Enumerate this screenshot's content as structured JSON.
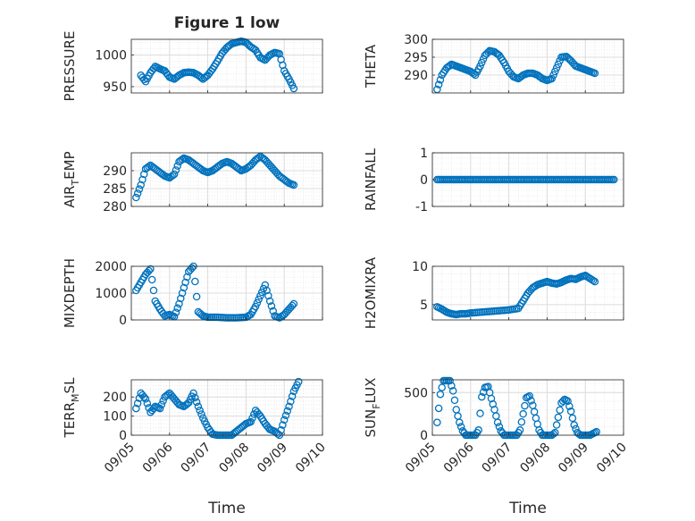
{
  "figure": {
    "title": "Figure 1 low"
  },
  "chart_data": [
    {
      "type": "scatter",
      "title": "Figure 1 low",
      "ylabel": "PRESSURE",
      "xlabel": "",
      "xlim": [
        "09/05",
        "09/10"
      ],
      "ylim": [
        940,
        1025
      ],
      "yticks": [
        "950",
        "1000"
      ],
      "xticks": [
        "09/05",
        "09/06",
        "09/07",
        "09/08",
        "09/09",
        "09/10"
      ],
      "grid": true,
      "x": [
        "09/05 06:00",
        "09/05 09:00",
        "09/05 12:00",
        "09/05 15:00",
        "09/05 18:00",
        "09/05 21:00",
        "09/06 00:00",
        "09/06 03:00",
        "09/06 06:00",
        "09/06 09:00",
        "09/06 12:00",
        "09/06 15:00",
        "09/06 18:00",
        "09/06 21:00",
        "09/07 00:00",
        "09/07 03:00",
        "09/07 06:00",
        "09/07 09:00",
        "09/07 12:00",
        "09/07 15:00",
        "09/07 18:00",
        "09/07 21:00",
        "09/08 00:00",
        "09/08 03:00",
        "09/08 06:00",
        "09/08 09:00",
        "09/08 12:00",
        "09/08 15:00",
        "09/08 18:00",
        "09/08 21:00",
        "09/09 00:00",
        "09/09 03:00",
        "09/09 06:00"
      ],
      "y": [
        968,
        958,
        972,
        982,
        978,
        975,
        965,
        962,
        968,
        972,
        973,
        972,
        968,
        962,
        968,
        978,
        990,
        1003,
        1012,
        1018,
        1020,
        1022,
        1020,
        1013,
        1008,
        996,
        992,
        1000,
        1004,
        1002,
        975,
        962,
        947
      ]
    },
    {
      "type": "scatter",
      "ylabel": "THETA",
      "xlabel": "",
      "xlim": [
        "09/05",
        "09/10"
      ],
      "ylim": [
        285,
        300
      ],
      "yticks": [
        "290",
        "295",
        "300"
      ],
      "xticks": [
        "09/05",
        "09/06",
        "09/07",
        "09/08",
        "09/09",
        "09/10"
      ],
      "grid": true,
      "x": [
        "09/05 03:00",
        "09/05 06:00",
        "09/05 09:00",
        "09/05 12:00",
        "09/05 15:00",
        "09/05 18:00",
        "09/05 21:00",
        "09/06 00:00",
        "09/06 03:00",
        "09/06 06:00",
        "09/06 09:00",
        "09/06 12:00",
        "09/06 15:00",
        "09/06 18:00",
        "09/06 21:00",
        "09/07 00:00",
        "09/07 03:00",
        "09/07 06:00",
        "09/07 09:00",
        "09/07 12:00",
        "09/07 15:00",
        "09/07 18:00",
        "09/07 21:00",
        "09/08 00:00",
        "09/08 03:00",
        "09/08 06:00",
        "09/08 09:00",
        "09/08 12:00",
        "09/08 15:00",
        "09/08 18:00",
        "09/08 21:00",
        "09/09 00:00",
        "09/09 03:00",
        "09/09 06:00"
      ],
      "y": [
        286,
        290,
        292,
        293,
        292.5,
        292,
        291.5,
        291,
        290,
        292.5,
        295.5,
        296.8,
        296.5,
        295.5,
        293.5,
        291,
        289.5,
        289,
        290,
        290.5,
        290.5,
        290,
        289,
        288.5,
        289,
        292,
        295,
        295.2,
        294,
        292.5,
        292,
        291.5,
        291,
        290.5
      ]
    },
    {
      "type": "scatter",
      "ylabel": "AIR_TEMP",
      "xlabel": "",
      "xlim": [
        "09/05",
        "09/10"
      ],
      "ylim": [
        280,
        295
      ],
      "yticks": [
        "280",
        "285",
        "290"
      ],
      "xticks": [
        "09/05",
        "09/06",
        "09/07",
        "09/08",
        "09/09",
        "09/10"
      ],
      "grid": true,
      "x": [
        "09/05 03:00",
        "09/05 06:00",
        "09/05 09:00",
        "09/05 12:00",
        "09/05 15:00",
        "09/05 18:00",
        "09/05 21:00",
        "09/06 00:00",
        "09/06 03:00",
        "09/06 06:00",
        "09/06 09:00",
        "09/06 12:00",
        "09/06 15:00",
        "09/06 18:00",
        "09/06 21:00",
        "09/07 00:00",
        "09/07 03:00",
        "09/07 06:00",
        "09/07 09:00",
        "09/07 12:00",
        "09/07 15:00",
        "09/07 18:00",
        "09/07 21:00",
        "09/08 00:00",
        "09/08 03:00",
        "09/08 06:00",
        "09/08 09:00",
        "09/08 12:00",
        "09/08 15:00",
        "09/08 18:00",
        "09/08 21:00",
        "09/09 00:00",
        "09/09 03:00",
        "09/09 06:00"
      ],
      "y": [
        282.5,
        286,
        290.5,
        291.5,
        290.5,
        289.5,
        288.5,
        288,
        289,
        292.5,
        293.5,
        293,
        292,
        291,
        290,
        289.5,
        290,
        291,
        292,
        292.5,
        292,
        291,
        290,
        290.5,
        291.5,
        293,
        294,
        293,
        291.5,
        290,
        288.5,
        287.5,
        286.5,
        286
      ]
    },
    {
      "type": "scatter",
      "ylabel": "RAINFALL",
      "xlabel": "",
      "xlim": [
        "09/05",
        "09/10"
      ],
      "ylim": [
        -1,
        1
      ],
      "yticks": [
        "-1",
        "0",
        "1"
      ],
      "xticks": [
        "09/05",
        "09/06",
        "09/07",
        "09/08",
        "09/09",
        "09/10"
      ],
      "grid": true,
      "x": [
        "09/05 03:00",
        "09/09 18:00"
      ],
      "y": [
        0,
        0
      ],
      "note_series": "constant zero at hourly intervals"
    },
    {
      "type": "scatter",
      "ylabel": "MIXDEPTH",
      "xlabel": "",
      "xlim": [
        "09/05",
        "09/10"
      ],
      "ylim": [
        0,
        2000
      ],
      "yticks": [
        "0",
        "1000",
        "2000"
      ],
      "xticks": [
        "09/05",
        "09/06",
        "09/07",
        "09/08",
        "09/09",
        "09/10"
      ],
      "grid": true,
      "x": [
        "09/05 03:00",
        "09/05 06:00",
        "09/05 09:00",
        "09/05 12:00",
        "09/05 15:00",
        "09/05 18:00",
        "09/05 21:00",
        "09/06 00:00",
        "09/06 03:00",
        "09/06 06:00",
        "09/06 09:00",
        "09/06 12:00",
        "09/06 15:00",
        "09/06 18:00",
        "09/06 21:00",
        "09/07 00:00",
        "09/07 06:00",
        "09/07 12:00",
        "09/07 18:00",
        "09/08 00:00",
        "09/08 03:00",
        "09/08 06:00",
        "09/08 09:00",
        "09/08 12:00",
        "09/08 15:00",
        "09/08 18:00",
        "09/08 21:00",
        "09/09 00:00",
        "09/09 03:00",
        "09/09 06:00"
      ],
      "y": [
        1100,
        1400,
        1700,
        1900,
        700,
        400,
        150,
        200,
        120,
        600,
        1200,
        1800,
        2000,
        300,
        150,
        100,
        100,
        80,
        80,
        100,
        200,
        500,
        900,
        1300,
        700,
        150,
        80,
        200,
        400,
        600
      ]
    },
    {
      "type": "scatter",
      "ylabel": "H2OMIXRA",
      "xlabel": "",
      "xlim": [
        "09/05",
        "09/10"
      ],
      "ylim": [
        3,
        10
      ],
      "yticks": [
        "5",
        "10"
      ],
      "xticks": [
        "09/05",
        "09/06",
        "09/07",
        "09/08",
        "09/09",
        "09/10"
      ],
      "grid": true,
      "x": [
        "09/05 03:00",
        "09/05 06:00",
        "09/05 09:00",
        "09/05 12:00",
        "09/05 15:00",
        "09/05 18:00",
        "09/05 21:00",
        "09/06 00:00",
        "09/06 06:00",
        "09/06 12:00",
        "09/06 18:00",
        "09/07 00:00",
        "09/07 06:00",
        "09/07 09:00",
        "09/07 12:00",
        "09/07 15:00",
        "09/07 18:00",
        "09/07 21:00",
        "09/08 00:00",
        "09/08 03:00",
        "09/08 06:00",
        "09/08 09:00",
        "09/08 12:00",
        "09/08 15:00",
        "09/08 18:00",
        "09/08 21:00",
        "09/09 00:00",
        "09/09 03:00",
        "09/09 06:00"
      ],
      "y": [
        4.7,
        4.4,
        4.0,
        3.8,
        3.7,
        3.8,
        3.8,
        3.9,
        4.0,
        4.1,
        4.2,
        4.3,
        4.5,
        5.5,
        6.5,
        7.2,
        7.6,
        7.8,
        8.0,
        7.8,
        7.7,
        7.9,
        8.2,
        8.4,
        8.3,
        8.6,
        8.8,
        8.4,
        8.0
      ]
    },
    {
      "type": "scatter",
      "ylabel": "TERR_MSL",
      "xlabel": "Time",
      "xlim": [
        "09/05",
        "09/10"
      ],
      "ylim": [
        0,
        290
      ],
      "yticks": [
        "0",
        "100",
        "200"
      ],
      "xticks": [
        "09/05",
        "09/06",
        "09/07",
        "09/08",
        "09/09",
        "09/10"
      ],
      "grid": true,
      "x": [
        "09/05 03:00",
        "09/05 06:00",
        "09/05 09:00",
        "09/05 12:00",
        "09/05 15:00",
        "09/05 18:00",
        "09/05 21:00",
        "09/06 00:00",
        "09/06 03:00",
        "09/06 06:00",
        "09/06 09:00",
        "09/06 12:00",
        "09/06 15:00",
        "09/06 18:00",
        "09/06 21:00",
        "09/07 00:00",
        "09/07 03:00",
        "09/07 06:00",
        "09/07 09:00",
        "09/07 12:00",
        "09/07 15:00",
        "09/07 18:00",
        "09/07 21:00",
        "09/08 00:00",
        "09/08 03:00",
        "09/08 06:00",
        "09/08 09:00",
        "09/08 12:00",
        "09/08 15:00",
        "09/08 18:00",
        "09/08 21:00",
        "09/09 00:00",
        "09/09 03:00",
        "09/09 06:00",
        "09/09 09:00"
      ],
      "y": [
        140,
        220,
        190,
        120,
        150,
        140,
        200,
        220,
        190,
        160,
        150,
        170,
        220,
        150,
        90,
        40,
        5,
        0,
        0,
        0,
        0,
        20,
        40,
        60,
        70,
        130,
        100,
        60,
        30,
        20,
        0,
        80,
        150,
        230,
        280
      ]
    },
    {
      "type": "scatter",
      "ylabel": "SUN_FLUX",
      "xlabel": "Time",
      "xlim": [
        "09/05",
        "09/10"
      ],
      "ylim": [
        0,
        650
      ],
      "yticks": [
        "0",
        "500"
      ],
      "xticks": [
        "09/05",
        "09/06",
        "09/07",
        "09/08",
        "09/09",
        "09/10"
      ],
      "grid": true,
      "x": [
        "09/05 03:00",
        "09/05 05:00",
        "09/05 07:00",
        "09/05 09:00",
        "09/05 11:00",
        "09/05 13:00",
        "09/05 15:00",
        "09/05 17:00",
        "09/05 19:00",
        "09/05 21:00",
        "09/05 23:00",
        "09/06 01:00",
        "09/06 03:00",
        "09/06 05:00",
        "09/06 07:00",
        "09/06 09:00",
        "09/06 11:00",
        "09/06 13:00",
        "09/06 15:00",
        "09/06 17:00",
        "09/06 19:00",
        "09/06 21:00",
        "09/06 23:00",
        "09/07 01:00",
        "09/07 03:00",
        "09/07 05:00",
        "09/07 07:00",
        "09/07 09:00",
        "09/07 11:00",
        "09/07 13:00",
        "09/07 15:00",
        "09/07 17:00",
        "09/07 19:00",
        "09/07 21:00",
        "09/07 23:00",
        "09/08 01:00",
        "09/08 03:00",
        "09/08 05:00",
        "09/08 07:00",
        "09/08 09:00",
        "09/08 11:00",
        "09/08 13:00",
        "09/08 15:00",
        "09/08 17:00",
        "09/08 19:00",
        "09/08 21:00",
        "09/08 23:00",
        "09/09 01:00",
        "09/09 03:00",
        "09/09 05:00",
        "09/09 07:00"
      ],
      "y": [
        150,
        480,
        640,
        640,
        640,
        520,
        300,
        150,
        50,
        0,
        0,
        0,
        0,
        60,
        450,
        560,
        570,
        430,
        300,
        150,
        50,
        0,
        0,
        0,
        0,
        0,
        60,
        250,
        440,
        460,
        350,
        200,
        60,
        0,
        0,
        0,
        0,
        30,
        210,
        380,
        420,
        400,
        280,
        120,
        30,
        0,
        0,
        0,
        0,
        20,
        40
      ]
    }
  ],
  "labels": {
    "ylabels": [
      "PRESSURE",
      "THETA",
      "AIR_TEMP",
      "RAINFALL",
      "MIXDEPTH",
      "H2OMIXRA",
      "TERR_MSL",
      "SUN_FLUX"
    ],
    "xlabel": "Time"
  },
  "colors": {
    "marker": "#0072BD",
    "grid": "#dcdcdc",
    "axes": "#262626"
  }
}
